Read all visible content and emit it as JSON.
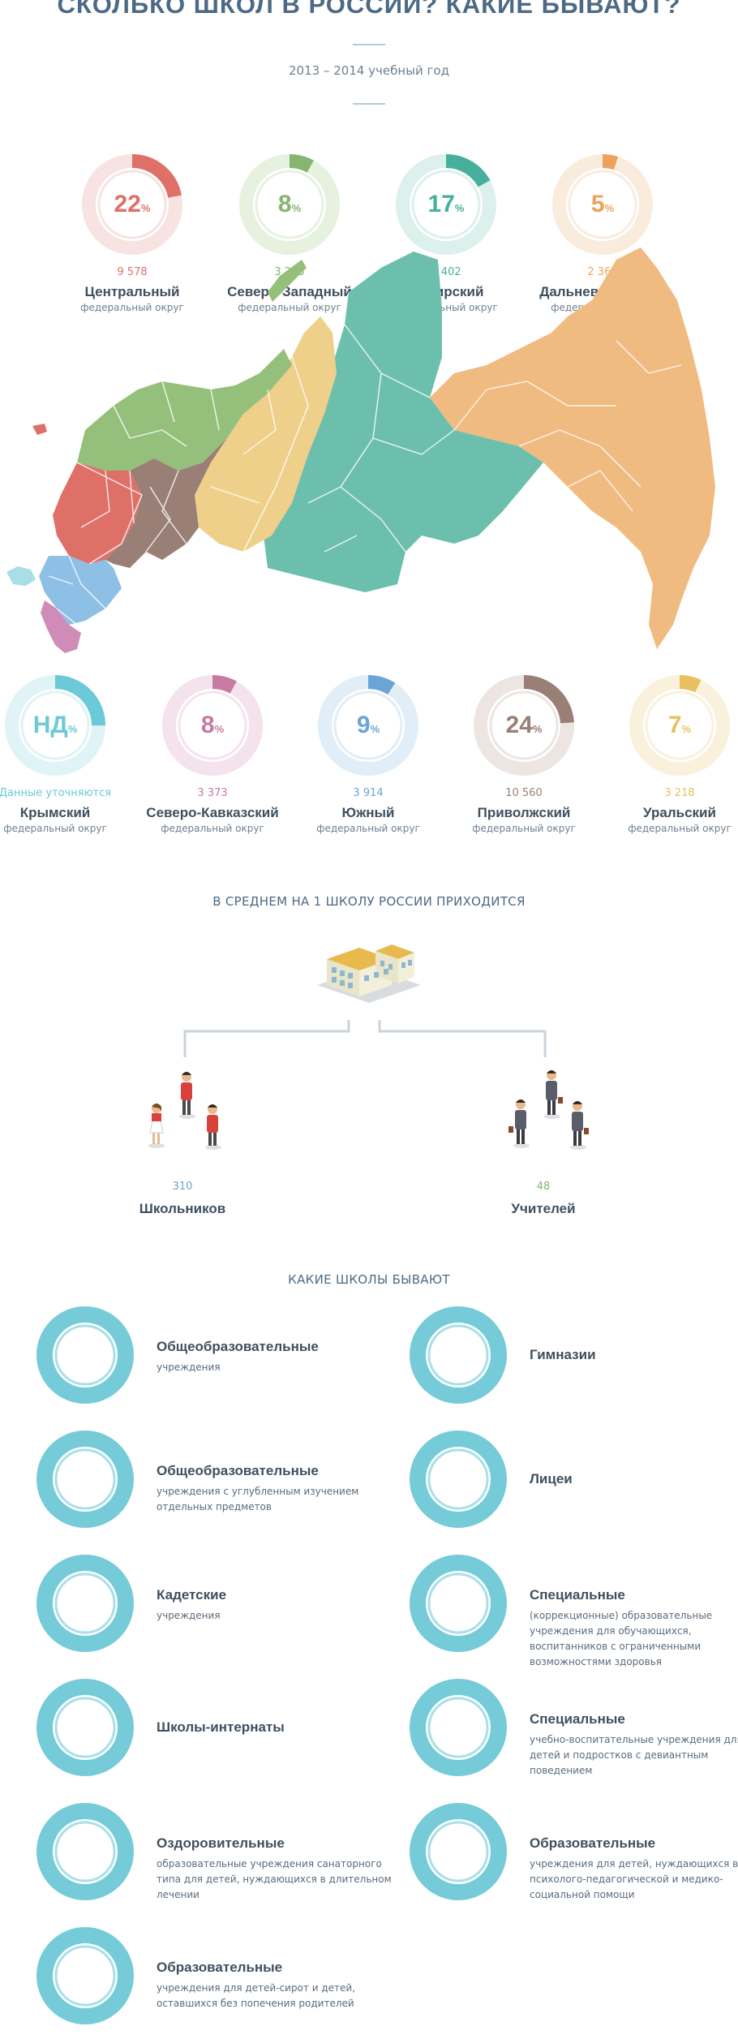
{
  "header": {
    "title": "СКОЛЬКО ШКОЛ В РОССИИ? КАКИЕ БЫВАЮТ?",
    "subtitle": "2013 – 2014 учебный год"
  },
  "percent_sign": "%",
  "okrug_label": "федеральный округ",
  "districts_top": [
    {
      "name": "Центральный",
      "percent": "22",
      "count": "9 578",
      "fraction": 0.22,
      "color": "#de7068",
      "light": "#f7e3e1"
    },
    {
      "name": "Северо-Западный",
      "percent": "8",
      "count": "3 293",
      "fraction": 0.08,
      "color": "#85b56f",
      "light": "#e6f1e0"
    },
    {
      "name": "Сибирский",
      "percent": "17",
      "count": "7 402",
      "fraction": 0.17,
      "color": "#47b09d",
      "light": "#dcf0ec"
    },
    {
      "name": "Дальневосточный",
      "percent": "5",
      "count": "2 360",
      "fraction": 0.05,
      "color": "#eda25c",
      "light": "#faecdd"
    }
  ],
  "districts_bottom": [
    {
      "name": "Крымский",
      "percent": "НД",
      "count": "Данные уточняются",
      "fraction": 0.25,
      "color": "#6cc9d8",
      "light": "#e0f3f6"
    },
    {
      "name": "Северо-Кавказский",
      "percent": "8",
      "count": "3 373",
      "fraction": 0.08,
      "color": "#c77ba3",
      "light": "#f4e3ec"
    },
    {
      "name": "Южный",
      "percent": "9",
      "count": "3 914",
      "fraction": 0.09,
      "color": "#6aa5d6",
      "light": "#e1edf7"
    },
    {
      "name": "Приволжский",
      "percent": "24",
      "count": "10 560",
      "fraction": 0.24,
      "color": "#9a7f76",
      "light": "#ece5e2"
    },
    {
      "name": "Уральский",
      "percent": "7",
      "count": "3 218",
      "fraction": 0.07,
      "color": "#e8c15e",
      "light": "#faf1dc"
    }
  ],
  "map_colors": {
    "central": "#de7068",
    "northwest": "#94c07c",
    "volga": "#9a7f76",
    "ural": "#efd08a",
    "siberia": "#6dbfad",
    "fareast": "#f0bb80",
    "south": "#8ebfe4",
    "caucasus": "#d08cb8",
    "crimea": "#a9dde8"
  },
  "average": {
    "title": "В СРЕДНЕМ НА 1 ШКОЛУ РОССИИ ПРИХОДИТСЯ",
    "students_count": "310",
    "students_label": "Школьников",
    "teachers_count": "48",
    "teachers_label": "Учителей"
  },
  "types": {
    "title": "КАКИЕ ШКОЛЫ БЫВАЮТ",
    "left": [
      {
        "title": "Общеобразовательные",
        "desc": "учреждения"
      },
      {
        "title": "Общеобразовательные",
        "desc": "учреждения с углубленным изучением отдельных предметов"
      },
      {
        "title": "Кадетские",
        "desc": "учреждения"
      },
      {
        "title": "Школы-интернаты",
        "desc": ""
      },
      {
        "title": "Оздоровительные",
        "desc": "образовательные учреждения санаторного типа для детей, нуждающихся в длительном лечении"
      },
      {
        "title": "Образовательные",
        "desc": "учреждения для детей-сирот и детей, оставшихся без попечения родителей"
      }
    ],
    "right": [
      {
        "title": "Гимназии",
        "desc": ""
      },
      {
        "title": "Лицеи",
        "desc": ""
      },
      {
        "title": "Специальные",
        "desc": "(коррекционные) образовательные учреждения для обучающихся, воспитанников с ограниченными возможностями здоровья"
      },
      {
        "title": "Специальные",
        "desc": "учебно-воспитательные учреждения для детей и подростков с девиантным поведением"
      },
      {
        "title": "Образовательные",
        "desc": "учреждения для детей, нуждающихся в психолого-педагогической и медико-социальной помощи"
      }
    ]
  }
}
